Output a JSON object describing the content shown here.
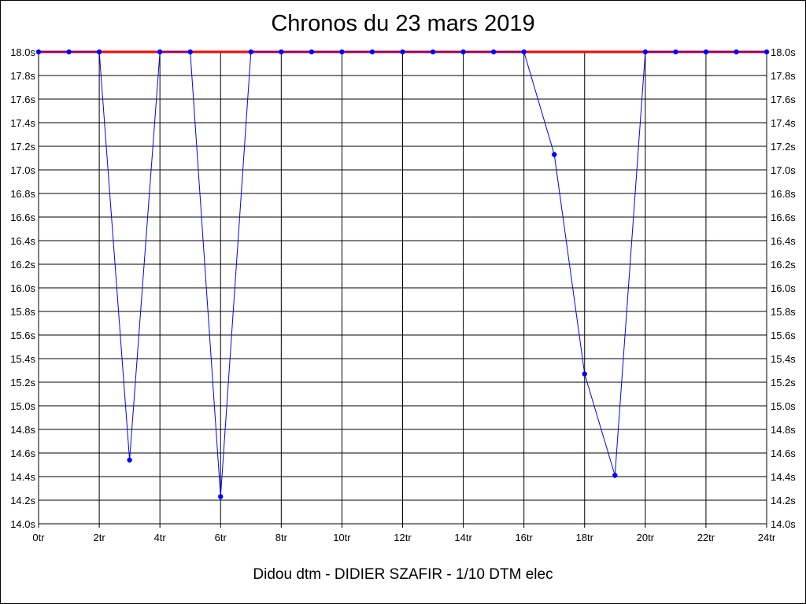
{
  "chart_data": {
    "type": "line",
    "title": "Chronos du 23 mars 2019",
    "footer": "Didou dtm - DIDIER SZAFIR - 1/10 DTM elec",
    "xlabel": "",
    "ylabel": "",
    "xlim": [
      0,
      24
    ],
    "ylim": [
      14.0,
      18.0
    ],
    "x_ticks": [
      "0tr",
      "2tr",
      "4tr",
      "6tr",
      "8tr",
      "10tr",
      "12tr",
      "14tr",
      "16tr",
      "18tr",
      "20tr",
      "22tr",
      "24tr"
    ],
    "y_ticks": [
      "14.0s",
      "14.2s",
      "14.4s",
      "14.6s",
      "14.8s",
      "15.0s",
      "15.2s",
      "15.4s",
      "15.6s",
      "15.8s",
      "16.0s",
      "16.2s",
      "16.4s",
      "16.6s",
      "16.8s",
      "17.0s",
      "17.2s",
      "17.4s",
      "17.6s",
      "17.8s",
      "18.0s"
    ],
    "grid": true,
    "reference_line": {
      "y": 18.0,
      "color": "#ff0000"
    },
    "series": [
      {
        "color": "#0000ff",
        "x": [
          0,
          1,
          2,
          3,
          4,
          5,
          6,
          7,
          8,
          9,
          10,
          11,
          12,
          13,
          14,
          15,
          16,
          17,
          18,
          19,
          20,
          21,
          22,
          23,
          24
        ],
        "values": [
          18.0,
          18.0,
          18.0,
          14.54,
          18.0,
          18.0,
          14.23,
          18.0,
          18.0,
          18.0,
          18.0,
          18.0,
          18.0,
          18.0,
          18.0,
          18.0,
          18.0,
          17.13,
          15.27,
          14.41,
          18.0,
          18.0,
          18.0,
          18.0,
          18.0
        ]
      }
    ]
  }
}
